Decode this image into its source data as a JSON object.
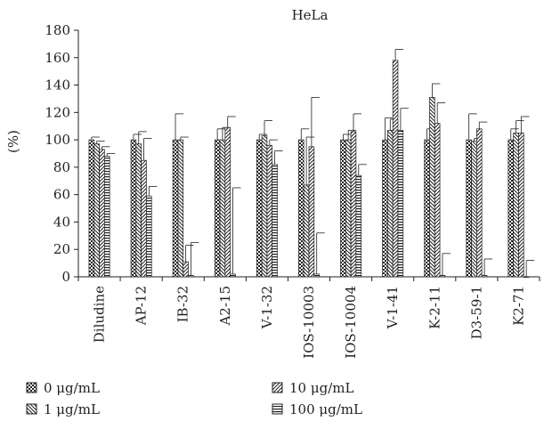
{
  "chart_data": {
    "type": "bar",
    "title": "HeLa",
    "xlabel": "",
    "ylabel": "(%)",
    "ylim": [
      0,
      180
    ],
    "yticks": [
      0,
      20,
      40,
      60,
      80,
      100,
      120,
      140,
      160,
      180
    ],
    "categories": [
      "Diludine",
      "AP-12",
      "IB-32",
      "A2-15",
      "V-1-32",
      "IOS-10003",
      "IOS-10004",
      "V-1-41",
      "K-2-11",
      "D3-59-1",
      "K2-71"
    ],
    "series": [
      {
        "name": "0 μg/mL",
        "pattern": "checker",
        "values": [
          100,
          100,
          100,
          100,
          100,
          100,
          100,
          100,
          100,
          100,
          100
        ],
        "errors": [
          2,
          4,
          19,
          8,
          4,
          8,
          4,
          16,
          8,
          19,
          8
        ]
      },
      {
        "name": "1 μg/mL",
        "pattern": "backslash",
        "values": [
          97,
          97,
          100,
          100,
          103,
          67,
          100,
          107,
          131,
          99,
          105
        ],
        "errors": [
          2,
          9,
          2,
          9,
          11,
          35,
          7,
          8,
          10,
          2,
          9
        ]
      },
      {
        "name": "10 μg/mL",
        "pattern": "slash",
        "values": [
          93,
          85,
          11,
          109,
          96,
          95,
          106,
          158,
          112,
          108,
          105
        ],
        "errors": [
          2,
          16,
          12,
          8,
          4,
          36,
          13,
          8,
          15,
          5,
          12
        ]
      },
      {
        "name": "100 μg/mL",
        "pattern": "hlines",
        "values": [
          88,
          59,
          1,
          2,
          82,
          2,
          74,
          107,
          1,
          1,
          0
        ],
        "errors": [
          2,
          7,
          24,
          63,
          10,
          30,
          8,
          16,
          16,
          12,
          12
        ]
      }
    ],
    "legend": {
      "placement": "bottom",
      "items": [
        {
          "label": "0 μg/mL",
          "pattern": "checker"
        },
        {
          "label": "10 μg/mL",
          "pattern": "slash"
        },
        {
          "label": "1 μg/mL",
          "pattern": "backslash"
        },
        {
          "label": "100 μg/mL",
          "pattern": "hlines"
        }
      ]
    },
    "grid": false
  }
}
